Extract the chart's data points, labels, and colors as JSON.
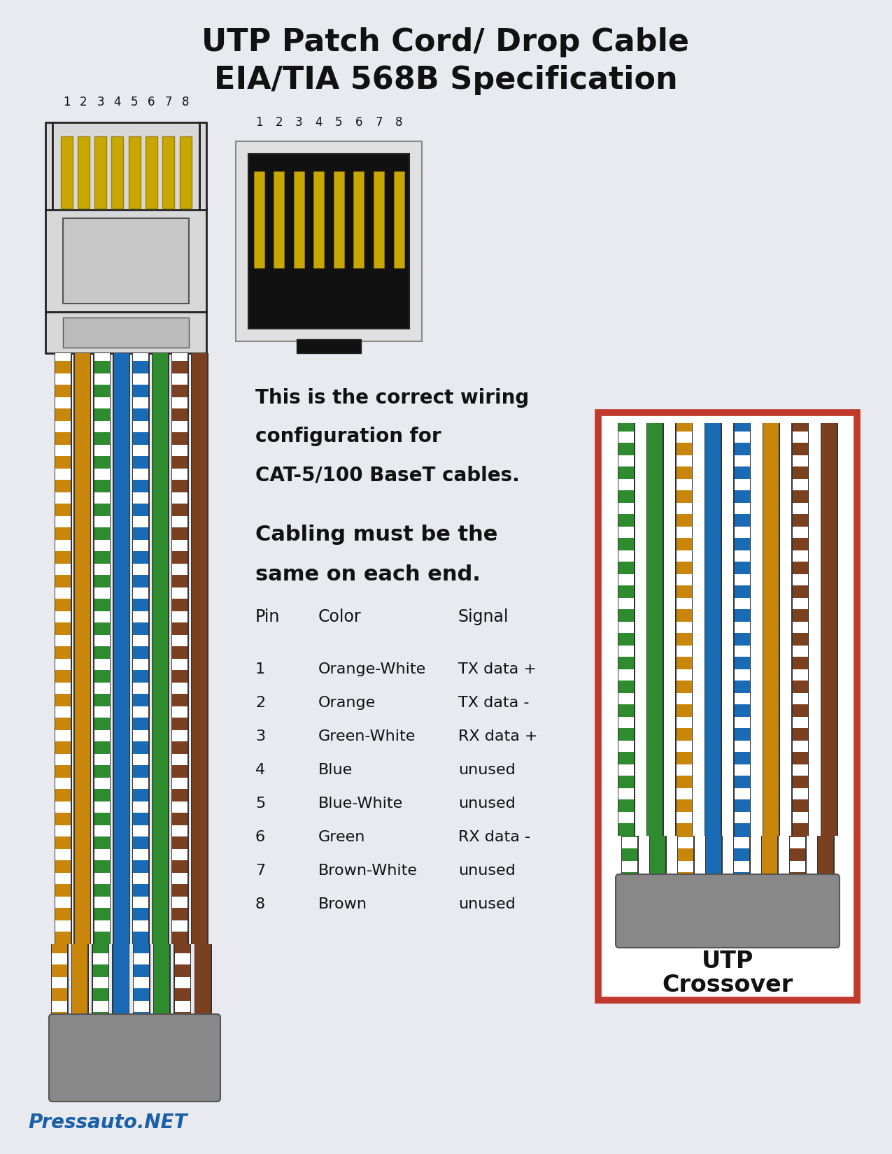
{
  "title_line1": "UTP Patch Cord/ Drop Cable",
  "title_line2": "EIA/TIA 568B Specification",
  "bg_color": "#e8eaf0",
  "text_color": "#111111",
  "correct_wiring_text1": "This is the correct wiring",
  "correct_wiring_text2": "configuration for",
  "correct_wiring_text3": "CAT-5/100 BaseT cables.",
  "cabling_text1": "Cabling must be the",
  "cabling_text2": "same on each end.",
  "pin_header": "Pin",
  "color_header": "Color",
  "signal_header": "Signal",
  "pins": [
    "1",
    "2",
    "3",
    "4",
    "5",
    "6",
    "7",
    "8"
  ],
  "colors_text": [
    "Orange-White",
    "Orange",
    "Green-White",
    "Blue",
    "Blue-White",
    "Green",
    "Brown-White",
    "Brown"
  ],
  "signals": [
    "TX data +",
    "TX data -",
    "RX data +",
    "unused",
    "unused",
    "RX data -",
    "unused",
    "unused"
  ],
  "left_wires": [
    {
      "primary": "#c8860a",
      "stripe": true
    },
    {
      "primary": "#c8860a",
      "stripe": false
    },
    {
      "primary": "#2e8b2e",
      "stripe": true
    },
    {
      "primary": "#1a6bb5",
      "stripe": false
    },
    {
      "primary": "#1a6bb5",
      "stripe": true
    },
    {
      "primary": "#2e8b2e",
      "stripe": false
    },
    {
      "primary": "#7b4020",
      "stripe": true
    },
    {
      "primary": "#7b4020",
      "stripe": false
    }
  ],
  "right_wires": [
    {
      "primary": "#2e8b2e",
      "stripe": true
    },
    {
      "primary": "#2e8b2e",
      "stripe": false
    },
    {
      "primary": "#c8860a",
      "stripe": true
    },
    {
      "primary": "#1a6bb5",
      "stripe": false
    },
    {
      "primary": "#1a6bb5",
      "stripe": true
    },
    {
      "primary": "#c8860a",
      "stripe": false
    },
    {
      "primary": "#7b4020",
      "stripe": true
    },
    {
      "primary": "#7b4020",
      "stripe": false
    }
  ],
  "crossover_label1": "UTP",
  "crossover_label2": "Crossover",
  "watermark": "Pressauto.NET",
  "red_box_color": "#c0392b",
  "connector_fill": "#d8d8d8",
  "connector_edge": "#222222",
  "pin_gold": "#c8a800",
  "pin_gold_edge": "#a08000",
  "black_body": "#111111",
  "white_stripe": "#ffffff",
  "jacket_color": "#888888",
  "jacket_edge": "#555555"
}
